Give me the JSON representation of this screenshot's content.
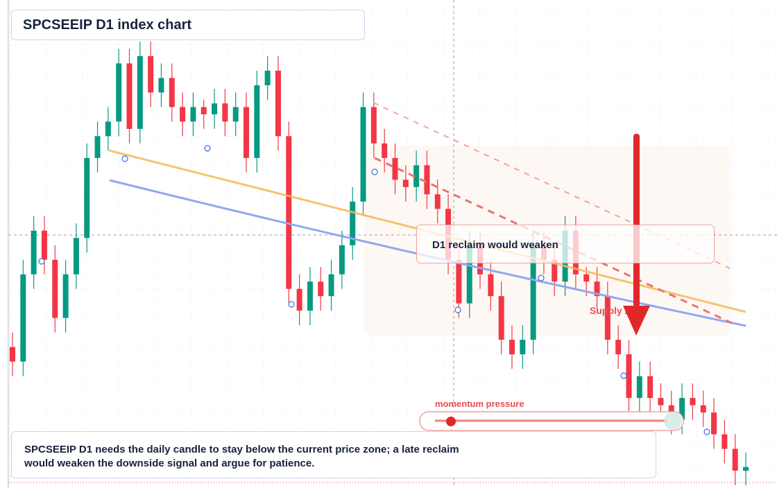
{
  "header": {
    "title": "SPCSEEIP D1 index chart"
  },
  "chart_data": {
    "type": "candlestick",
    "candles": [
      [
        40,
        44,
        32,
        36
      ],
      [
        36,
        64,
        32,
        60
      ],
      [
        60,
        76,
        56,
        72
      ],
      [
        72,
        76,
        60,
        64
      ],
      [
        64,
        68,
        44,
        48
      ],
      [
        48,
        64,
        44,
        60
      ],
      [
        60,
        74,
        56,
        70
      ],
      [
        70,
        96,
        66,
        92
      ],
      [
        92,
        102,
        88,
        98
      ],
      [
        98,
        106,
        94,
        102
      ],
      [
        102,
        122,
        98,
        118
      ],
      [
        118,
        122,
        96,
        100
      ],
      [
        100,
        124,
        96,
        120
      ],
      [
        120,
        124,
        106,
        110
      ],
      [
        110,
        118,
        106,
        114
      ],
      [
        114,
        118,
        102,
        106
      ],
      [
        106,
        110,
        98,
        102
      ],
      [
        102,
        110,
        98,
        106
      ],
      [
        106,
        108,
        100,
        104
      ],
      [
        104,
        111,
        100,
        107
      ],
      [
        107,
        111,
        98,
        102
      ],
      [
        102,
        110,
        98,
        106
      ],
      [
        106,
        110,
        88,
        92
      ],
      [
        92,
        116,
        88,
        112
      ],
      [
        112,
        120,
        108,
        116
      ],
      [
        116,
        120,
        94,
        98
      ],
      [
        98,
        102,
        52,
        56
      ],
      [
        56,
        60,
        46,
        50
      ],
      [
        50,
        62,
        46,
        58
      ],
      [
        58,
        62,
        50,
        54
      ],
      [
        54,
        64,
        50,
        60
      ],
      [
        60,
        72,
        56,
        68
      ],
      [
        68,
        84,
        64,
        80
      ],
      [
        80,
        110,
        76,
        106
      ],
      [
        106,
        110,
        92,
        96
      ],
      [
        96,
        100,
        88,
        92
      ],
      [
        92,
        96,
        82,
        86
      ],
      [
        86,
        90,
        80,
        84
      ],
      [
        84,
        94,
        80,
        90
      ],
      [
        90,
        94,
        78,
        82
      ],
      [
        82,
        86,
        74,
        78
      ],
      [
        78,
        82,
        60,
        64
      ],
      [
        64,
        68,
        48,
        52
      ],
      [
        52,
        72,
        48,
        68
      ],
      [
        68,
        72,
        56,
        60
      ],
      [
        60,
        64,
        50,
        54
      ],
      [
        54,
        58,
        38,
        42
      ],
      [
        42,
        46,
        34,
        38
      ],
      [
        38,
        46,
        34,
        42
      ],
      [
        42,
        72,
        38,
        68
      ],
      [
        68,
        72,
        60,
        64
      ],
      [
        64,
        68,
        54,
        58
      ],
      [
        58,
        76,
        54,
        72
      ],
      [
        72,
        76,
        56,
        60
      ],
      [
        60,
        62,
        54,
        58
      ],
      [
        58,
        62,
        50,
        54
      ],
      [
        54,
        58,
        38,
        42
      ],
      [
        42,
        46,
        34,
        38
      ],
      [
        38,
        42,
        22,
        26
      ],
      [
        26,
        36,
        22,
        32
      ],
      [
        32,
        36,
        22,
        26
      ],
      [
        26,
        30,
        20,
        24
      ],
      [
        24,
        28,
        16,
        20
      ],
      [
        20,
        30,
        16,
        26
      ],
      [
        26,
        30,
        20,
        24
      ],
      [
        24,
        28,
        18,
        22
      ],
      [
        22,
        26,
        12,
        16
      ],
      [
        16,
        20,
        8,
        12
      ],
      [
        12,
        16,
        2,
        6
      ],
      [
        6,
        11,
        2,
        7
      ]
    ],
    "up_color": "#089981",
    "down_color": "#f23645"
  },
  "annotations": {
    "reclaim": "D1 reclaim would weaken",
    "zone": "Supply zone",
    "momentum": "momentum pressure"
  },
  "caption": {
    "lines": [
      "SPCSEEIP D1 needs the daily candle to stay below the current price zone; a late reclaim",
      "would weaken the downside signal and argue for patience."
    ]
  }
}
